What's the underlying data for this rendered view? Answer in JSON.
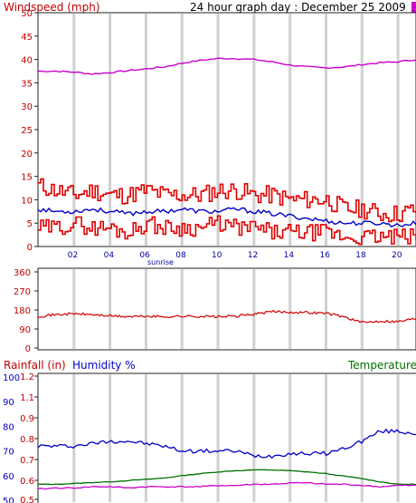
{
  "header": {
    "title": "24 hour graph day : December 25 2009"
  },
  "colors": {
    "wind": "#e00000",
    "wind_avg": "#0000c8",
    "pressure": "#cc00cc",
    "direction": "#d00000",
    "humidity": "#0000c8",
    "temperature": "#007000",
    "grid": "#d0d0d0",
    "axis_red": "#c00000",
    "axis_blue": "#0000c8"
  },
  "chart_data": [
    {
      "type": "line",
      "ylabel": "Windspeed (mph)",
      "ylim": [
        0,
        50
      ],
      "y_ticks": [
        "0",
        "5",
        "10",
        "15",
        "20",
        "25",
        "30",
        "35",
        "40",
        "45",
        "50"
      ],
      "x_range": [
        0,
        21
      ],
      "x_ticks": [
        {
          "x": 2,
          "label": "02"
        },
        {
          "x": 4,
          "label": "04"
        },
        {
          "x": 6,
          "label": "06"
        },
        {
          "x": 8,
          "label": "08"
        },
        {
          "x": 10,
          "label": "10"
        },
        {
          "x": 12,
          "label": "12"
        },
        {
          "x": 14,
          "label": "14"
        },
        {
          "x": 16,
          "label": "16"
        },
        {
          "x": 18,
          "label": "18"
        },
        {
          "x": 20,
          "label": "20"
        }
      ],
      "annotation": {
        "x": 6,
        "label": "sunrise"
      },
      "series": [
        {
          "key": "pressure_line",
          "x": [
            0,
            1,
            2,
            3,
            4,
            5,
            6,
            7,
            8,
            9,
            10,
            11,
            12,
            13,
            14,
            15,
            16,
            17,
            18,
            19,
            20,
            21
          ],
          "values": [
            37.5,
            37.5,
            37.3,
            36.9,
            37.2,
            37.6,
            38.0,
            38.4,
            39.2,
            39.8,
            40.2,
            40.2,
            40.0,
            39.5,
            38.8,
            38.4,
            38.2,
            38.4,
            38.9,
            39.3,
            39.5,
            40.0
          ]
        },
        {
          "key": "gust_high",
          "x": [
            0,
            1,
            2,
            3,
            4,
            5,
            6,
            7,
            8,
            9,
            10,
            11,
            12,
            13,
            14,
            15,
            16,
            17,
            18,
            19,
            20,
            21
          ],
          "values": [
            13,
            12,
            11,
            12,
            11,
            11,
            12,
            11,
            11,
            11,
            12,
            12,
            11,
            11,
            10,
            10,
            10,
            8,
            8,
            7,
            7,
            8
          ]
        },
        {
          "key": "gust_low",
          "x": [
            0,
            1,
            2,
            3,
            4,
            5,
            6,
            7,
            8,
            9,
            10,
            11,
            12,
            13,
            14,
            15,
            16,
            17,
            18,
            19,
            20,
            21
          ],
          "values": [
            4,
            4,
            5,
            4,
            4,
            3,
            5,
            4,
            4,
            4,
            5,
            4,
            4,
            3,
            3,
            3,
            3,
            2,
            2,
            2,
            2,
            2
          ]
        },
        {
          "key": "average",
          "x": [
            0,
            1,
            2,
            3,
            4,
            5,
            6,
            7,
            8,
            9,
            10,
            11,
            12,
            13,
            14,
            15,
            16,
            17,
            18,
            19,
            20,
            21
          ],
          "values": [
            8,
            7.5,
            7.5,
            8,
            7.5,
            7,
            7.5,
            7.5,
            8,
            7.5,
            7.5,
            8,
            7.5,
            7,
            6.5,
            6,
            5.5,
            5,
            5,
            5,
            4.5,
            5
          ]
        }
      ]
    },
    {
      "type": "line",
      "ylim": [
        0,
        360
      ],
      "y_ticks": [
        "0",
        "90",
        "180",
        "270",
        "360"
      ],
      "x_range": [
        0,
        21
      ],
      "series": [
        {
          "key": "wind_direction",
          "x": [
            0,
            1,
            2,
            3,
            4,
            5,
            6,
            7,
            8,
            9,
            10,
            11,
            12,
            13,
            14,
            15,
            16,
            17,
            18,
            19,
            20,
            21
          ],
          "values": [
            150,
            158,
            162,
            158,
            152,
            148,
            150,
            148,
            150,
            150,
            148,
            150,
            160,
            172,
            170,
            168,
            165,
            148,
            120,
            128,
            125,
            140
          ]
        }
      ]
    },
    {
      "type": "line",
      "labels": {
        "rainfall": "Rainfall (in)",
        "humidity": "Humidity %",
        "temperature": "Temperature"
      },
      "y_ticks_humidity": [
        "50",
        "60",
        "70",
        "80",
        "90",
        "100"
      ],
      "y_ticks_rainfall": [
        "0.5",
        "0.6",
        "0.7",
        "0.8",
        "0.9",
        "1.1",
        "1.2"
      ],
      "humidity_ylim": [
        50,
        100
      ],
      "x_range": [
        0,
        21
      ],
      "series": [
        {
          "key": "humidity",
          "x": [
            0,
            1,
            2,
            3,
            4,
            5,
            6,
            7,
            8,
            9,
            10,
            11,
            12,
            13,
            14,
            15,
            16,
            17,
            18,
            19,
            20,
            21
          ],
          "values": [
            72,
            72,
            72,
            73,
            74,
            74,
            73,
            72,
            70,
            70,
            70,
            70,
            68,
            68,
            69,
            69,
            69,
            71,
            74,
            78,
            78,
            77
          ]
        },
        {
          "key": "temperature",
          "x": [
            0,
            1,
            2,
            3,
            4,
            5,
            6,
            7,
            8,
            9,
            10,
            11,
            12,
            13,
            14,
            15,
            16,
            17,
            18,
            19,
            20,
            21
          ],
          "values": [
            56.5,
            56.5,
            56.8,
            57.2,
            57.5,
            58.0,
            58.5,
            59.0,
            60.0,
            60.8,
            61.5,
            62.0,
            62.3,
            62.3,
            62.0,
            61.5,
            60.8,
            59.8,
            58.8,
            57.5,
            56.5,
            56.5
          ]
        },
        {
          "key": "rainfall_line",
          "x": [
            0,
            1,
            2,
            3,
            4,
            5,
            6,
            7,
            8,
            9,
            10,
            11,
            12,
            13,
            14,
            15,
            16,
            17,
            18,
            19,
            20,
            21
          ],
          "values": [
            54.5,
            55,
            55,
            55.5,
            55.5,
            55,
            55.5,
            55.5,
            55.5,
            55.5,
            56,
            56,
            56.5,
            56.5,
            57,
            57,
            56.5,
            56.5,
            56,
            55.5,
            56,
            56
          ]
        }
      ]
    }
  ]
}
